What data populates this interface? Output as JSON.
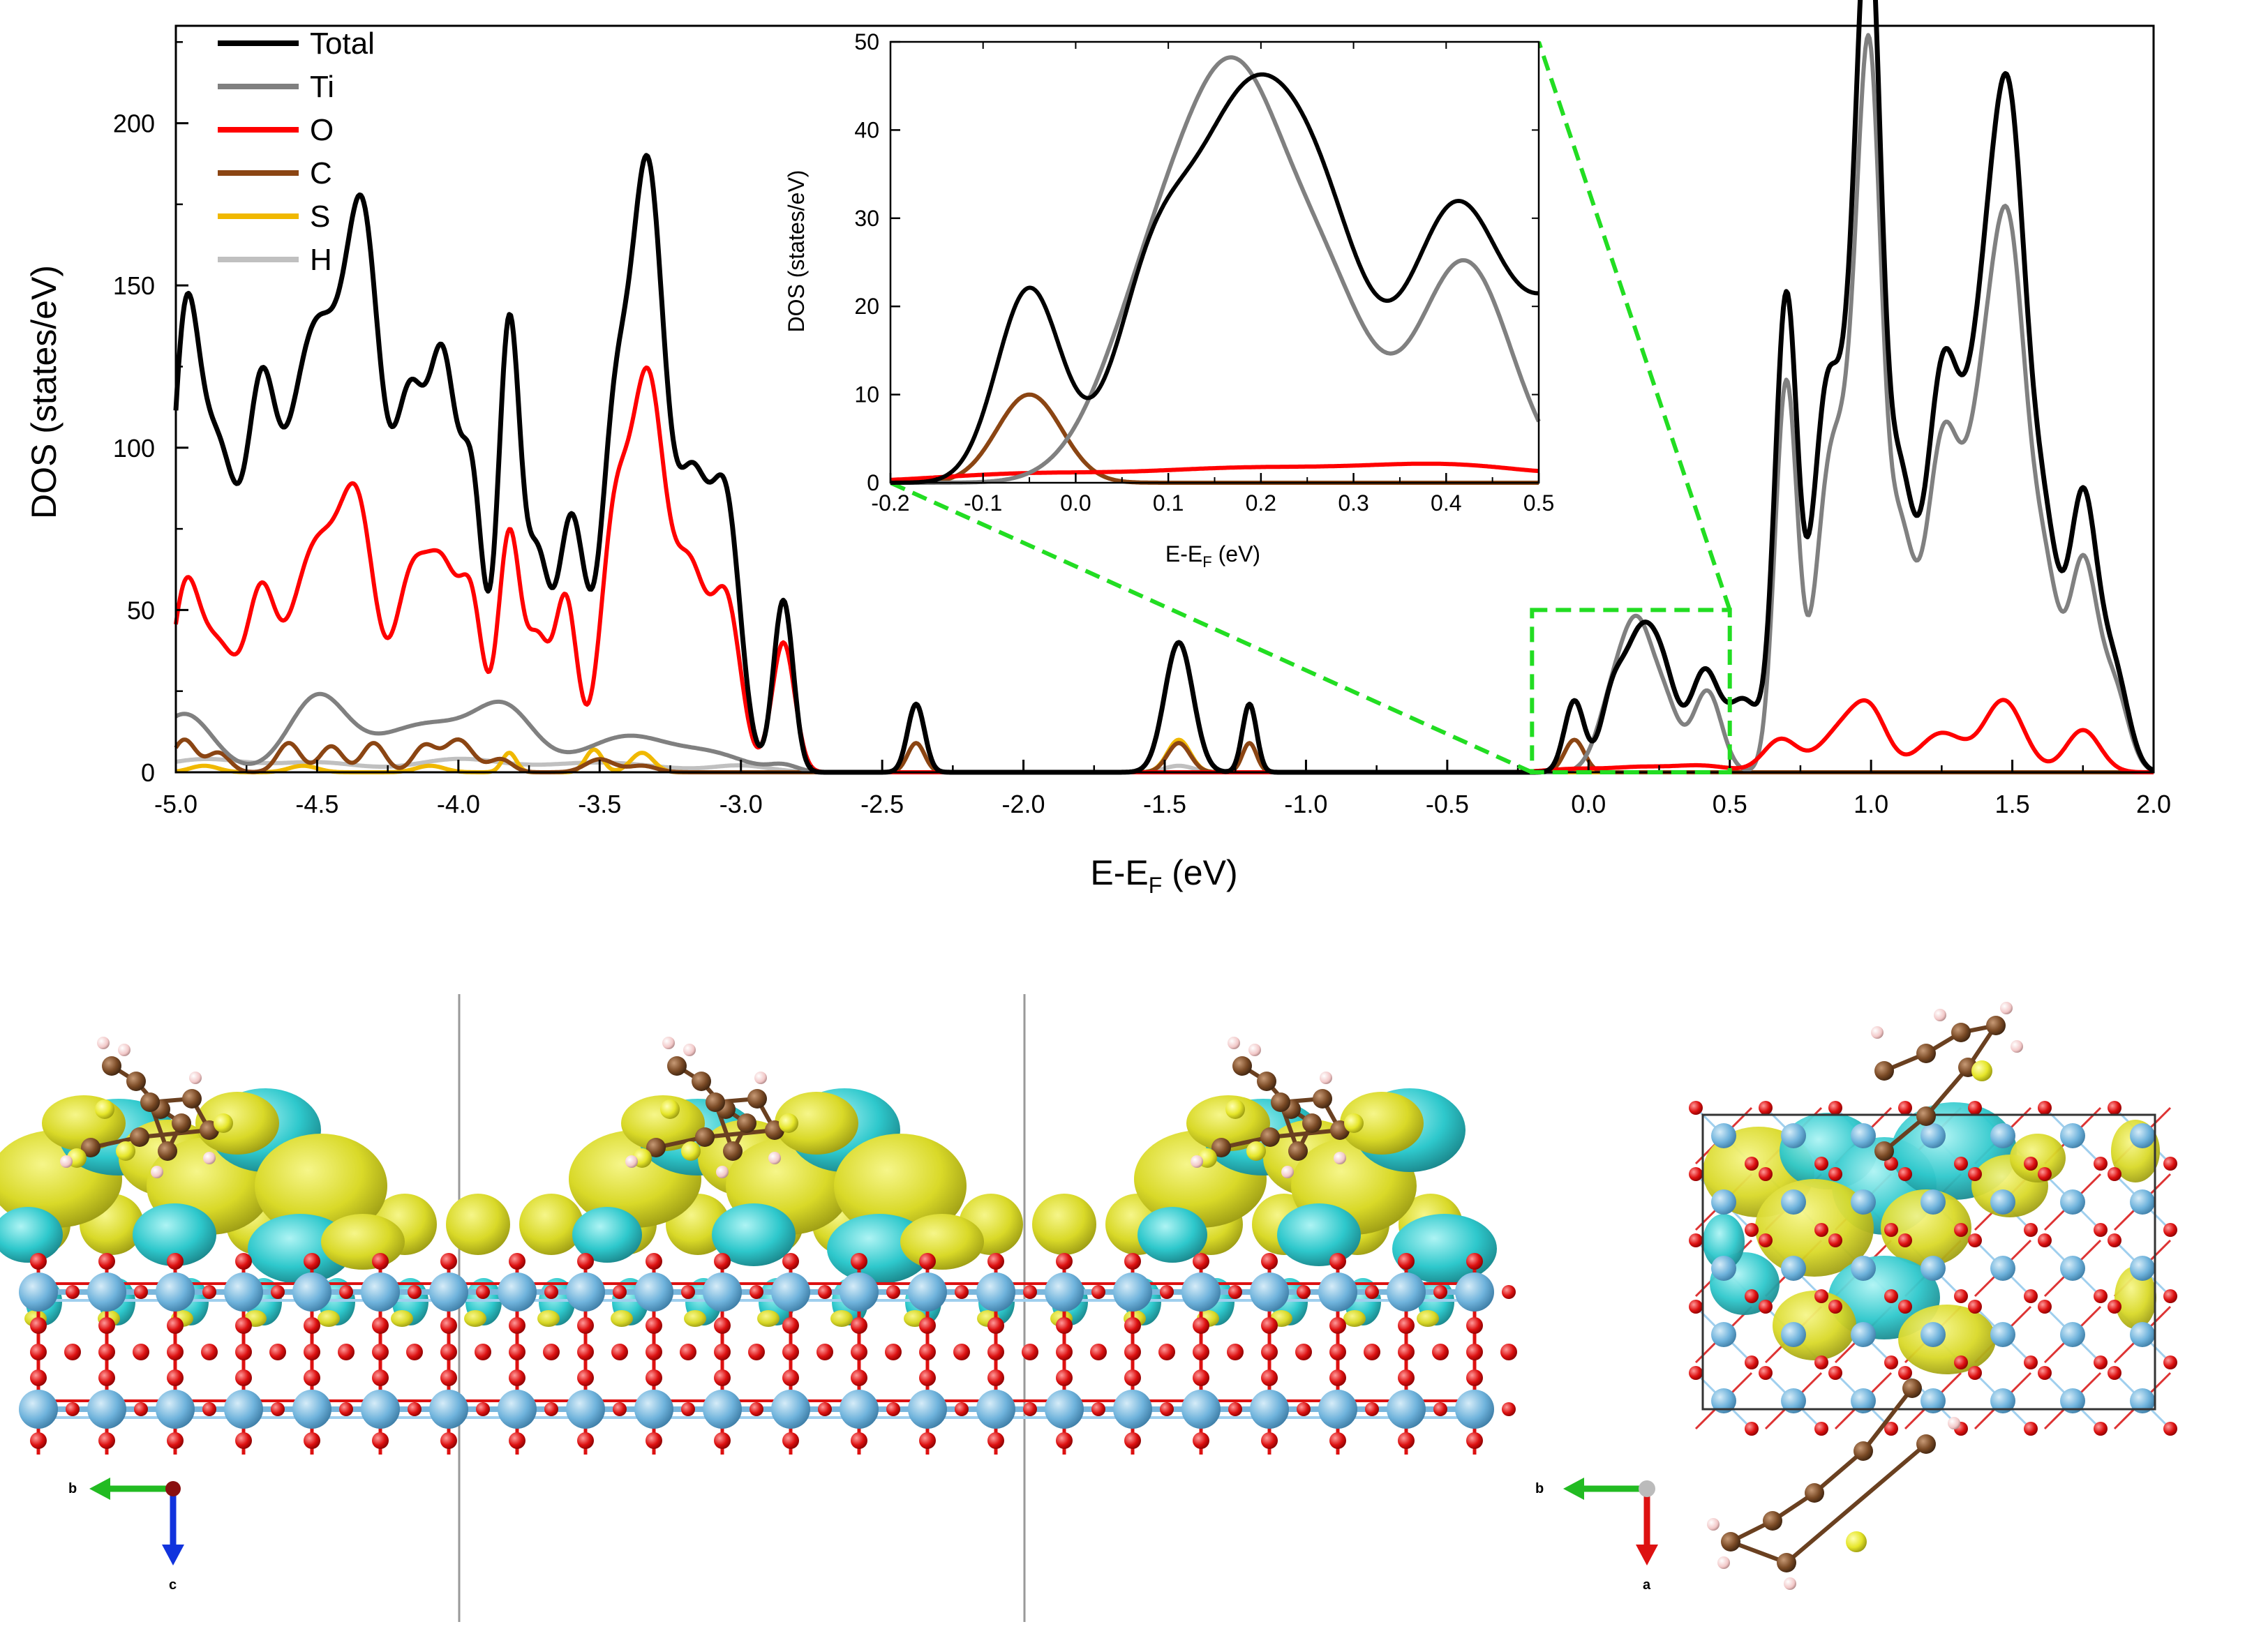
{
  "chart_data": {
    "type": "line",
    "title": "",
    "xlabel": {
      "main": "E-E",
      "sub": "F",
      "unit": " (eV)"
    },
    "ylabel": "DOS (states/eV)",
    "xlim": [
      -5.0,
      2.0
    ],
    "ylim": [
      0,
      230
    ],
    "xticks": [
      -5.0,
      -4.5,
      -4.0,
      -3.5,
      -3.0,
      -2.5,
      -2.0,
      -1.5,
      -1.0,
      -0.5,
      0.0,
      0.5,
      1.0,
      1.5,
      2.0
    ],
    "xtick_labels": [
      "-5.0",
      "-4.5",
      "-4.0",
      "-3.5",
      "-3.0",
      "-2.5",
      "-2.0",
      "-1.5",
      "-1.0",
      "-0.5",
      "0.0",
      "0.5",
      "1.0",
      "1.5",
      "2.0"
    ],
    "yticks": [
      0,
      50,
      100,
      150,
      200
    ],
    "ytick_labels": [
      "0",
      "50",
      "100",
      "150",
      "200"
    ],
    "legend_position": "top-left",
    "series": [
      {
        "name": "Total",
        "color": "#000000",
        "peaks": [
          [
            -4.97,
            122,
            0.05
          ],
          [
            -4.85,
            95,
            0.07
          ],
          [
            -4.7,
            80,
            0.05
          ],
          [
            -4.5,
            138,
            0.12
          ],
          [
            -4.33,
            120,
            0.06
          ],
          [
            -4.17,
            108,
            0.06
          ],
          [
            -4.05,
            112,
            0.05
          ],
          [
            -3.95,
            80,
            0.04
          ],
          [
            -3.82,
            138,
            0.04
          ],
          [
            -3.72,
            60,
            0.04
          ],
          [
            -3.6,
            78,
            0.05
          ],
          [
            -3.45,
            95,
            0.05
          ],
          [
            -3.33,
            182,
            0.06
          ],
          [
            -3.17,
            86,
            0.06
          ],
          [
            -3.05,
            76,
            0.05
          ],
          [
            -2.85,
            53,
            0.035
          ],
          [
            -2.38,
            21,
            0.03
          ],
          [
            -1.45,
            40,
            0.05
          ],
          [
            -1.2,
            21,
            0.025
          ],
          [
            -0.05,
            22,
            0.035
          ],
          [
            0.08,
            18,
            0.04
          ],
          [
            0.18,
            40,
            0.06
          ],
          [
            0.27,
            22,
            0.05
          ],
          [
            0.41,
            30,
            0.05
          ],
          [
            0.55,
            22,
            0.06
          ],
          [
            0.7,
            145,
            0.04
          ],
          [
            0.84,
            110,
            0.05
          ],
          [
            0.95,
            120,
            0.05
          ],
          [
            1.0,
            180,
            0.04
          ],
          [
            1.1,
            85,
            0.05
          ],
          [
            1.25,
            115,
            0.06
          ],
          [
            1.4,
            120,
            0.07
          ],
          [
            1.5,
            160,
            0.06
          ],
          [
            1.62,
            60,
            0.05
          ],
          [
            1.75,
            83,
            0.05
          ],
          [
            1.86,
            30,
            0.05
          ]
        ]
      },
      {
        "name": "Ti",
        "color": "#808080",
        "peaks": [
          [
            -4.97,
            18,
            0.1
          ],
          [
            -4.5,
            22,
            0.1
          ],
          [
            -4.1,
            15,
            0.2
          ],
          [
            -3.83,
            15,
            0.1
          ],
          [
            -3.4,
            11,
            0.15
          ],
          [
            -3.1,
            5,
            0.12
          ],
          [
            -2.85,
            2,
            0.05
          ],
          [
            0.1,
            26,
            0.06
          ],
          [
            0.18,
            33,
            0.05
          ],
          [
            0.27,
            20,
            0.05
          ],
          [
            0.42,
            25,
            0.05
          ],
          [
            0.7,
            120,
            0.04
          ],
          [
            0.85,
            85,
            0.05
          ],
          [
            0.95,
            95,
            0.05
          ],
          [
            1.0,
            155,
            0.04
          ],
          [
            1.1,
            70,
            0.05
          ],
          [
            1.25,
            95,
            0.06
          ],
          [
            1.4,
            100,
            0.07
          ],
          [
            1.5,
            128,
            0.06
          ],
          [
            1.62,
            50,
            0.05
          ],
          [
            1.75,
            63,
            0.05
          ],
          [
            1.86,
            25,
            0.05
          ]
        ]
      },
      {
        "name": "O",
        "color": "#ff0000",
        "peaks": [
          [
            -4.97,
            50,
            0.05
          ],
          [
            -4.85,
            38,
            0.07
          ],
          [
            -4.7,
            45,
            0.05
          ],
          [
            -4.5,
            70,
            0.1
          ],
          [
            -4.35,
            62,
            0.06
          ],
          [
            -4.17,
            55,
            0.06
          ],
          [
            -4.05,
            57,
            0.06
          ],
          [
            -3.95,
            42,
            0.04
          ],
          [
            -3.82,
            73,
            0.04
          ],
          [
            -3.72,
            38,
            0.04
          ],
          [
            -3.62,
            53,
            0.04
          ],
          [
            -3.45,
            70,
            0.05
          ],
          [
            -3.33,
            118,
            0.06
          ],
          [
            -3.18,
            60,
            0.06
          ],
          [
            -3.05,
            50,
            0.05
          ],
          [
            -2.85,
            40,
            0.04
          ],
          [
            -0.05,
            1,
            0.1
          ],
          [
            0.18,
            1.5,
            0.1
          ],
          [
            0.4,
            2,
            0.1
          ],
          [
            0.68,
            10,
            0.06
          ],
          [
            0.9,
            13,
            0.08
          ],
          [
            1.0,
            15,
            0.06
          ],
          [
            1.25,
            12,
            0.08
          ],
          [
            1.47,
            22,
            0.07
          ],
          [
            1.75,
            13,
            0.06
          ]
        ]
      },
      {
        "name": "C",
        "color": "#8b4513",
        "peaks": [
          [
            -4.97,
            10,
            0.04
          ],
          [
            -4.85,
            6,
            0.04
          ],
          [
            -4.6,
            9,
            0.04
          ],
          [
            -4.45,
            8,
            0.04
          ],
          [
            -4.3,
            9,
            0.04
          ],
          [
            -4.12,
            8,
            0.04
          ],
          [
            -4.0,
            10,
            0.05
          ],
          [
            -3.85,
            4,
            0.04
          ],
          [
            -3.5,
            4,
            0.05
          ],
          [
            -3.35,
            2,
            0.05
          ],
          [
            -2.38,
            9,
            0.03
          ],
          [
            -1.45,
            9,
            0.04
          ],
          [
            -1.2,
            9,
            0.025
          ],
          [
            -0.05,
            10,
            0.035
          ]
        ]
      },
      {
        "name": "S",
        "color": "#f0b800",
        "peaks": [
          [
            -4.9,
            2,
            0.05
          ],
          [
            -4.55,
            2,
            0.05
          ],
          [
            -4.1,
            2,
            0.05
          ],
          [
            -3.82,
            6,
            0.025
          ],
          [
            -3.52,
            7,
            0.03
          ],
          [
            -3.35,
            6,
            0.04
          ],
          [
            -1.45,
            10,
            0.04
          ]
        ]
      },
      {
        "name": "H",
        "color": "#c0c0c0",
        "peaks": [
          [
            -4.9,
            4,
            0.15
          ],
          [
            -4.5,
            3,
            0.15
          ],
          [
            -4.0,
            4,
            0.15
          ],
          [
            -3.5,
            3,
            0.2
          ],
          [
            -3.0,
            2,
            0.1
          ],
          [
            -1.45,
            2,
            0.05
          ]
        ]
      }
    ],
    "inset": {
      "xlabel": {
        "main": "E-E",
        "sub": "F",
        "unit": " (eV)"
      },
      "ylabel": "DOS (states/eV)",
      "xlim": [
        -0.2,
        0.5
      ],
      "ylim": [
        0,
        50
      ],
      "xticks": [
        -0.2,
        -0.1,
        0.0,
        0.1,
        0.2,
        0.3,
        0.4,
        0.5
      ],
      "xtick_labels": [
        "-0.2",
        "-0.1",
        "0.0",
        "0.1",
        "0.2",
        "0.3",
        "0.4",
        "0.5"
      ],
      "yticks": [
        0,
        10,
        20,
        30,
        40,
        50
      ],
      "ytick_labels": [
        "0",
        "10",
        "20",
        "30",
        "40",
        "50"
      ],
      "series_shown": [
        "Total",
        "Ti",
        "O",
        "C"
      ]
    },
    "zoom_region": {
      "x": [
        -0.2,
        0.5
      ],
      "y": [
        0,
        50
      ],
      "color": "#22dd22"
    }
  },
  "structure_views": {
    "side_view": {
      "axis_labels": [
        "b",
        "c"
      ],
      "axis_colors": [
        "#22bb22",
        "#1133dd"
      ]
    },
    "top_view": {
      "axis_labels": [
        "b",
        "a"
      ],
      "axis_colors": [
        "#22bb22",
        "#dd1111"
      ]
    },
    "colors": {
      "isosurface_yellow": "#dcdc28",
      "isosurface_cyan": "#2ec8cc",
      "ti_atom": "#6fb3dc",
      "o_atom": "#dd1111",
      "c_atom": "#7a4a25",
      "s_atom": "#e6e62a",
      "h_atom": "#f2c8c8"
    }
  }
}
